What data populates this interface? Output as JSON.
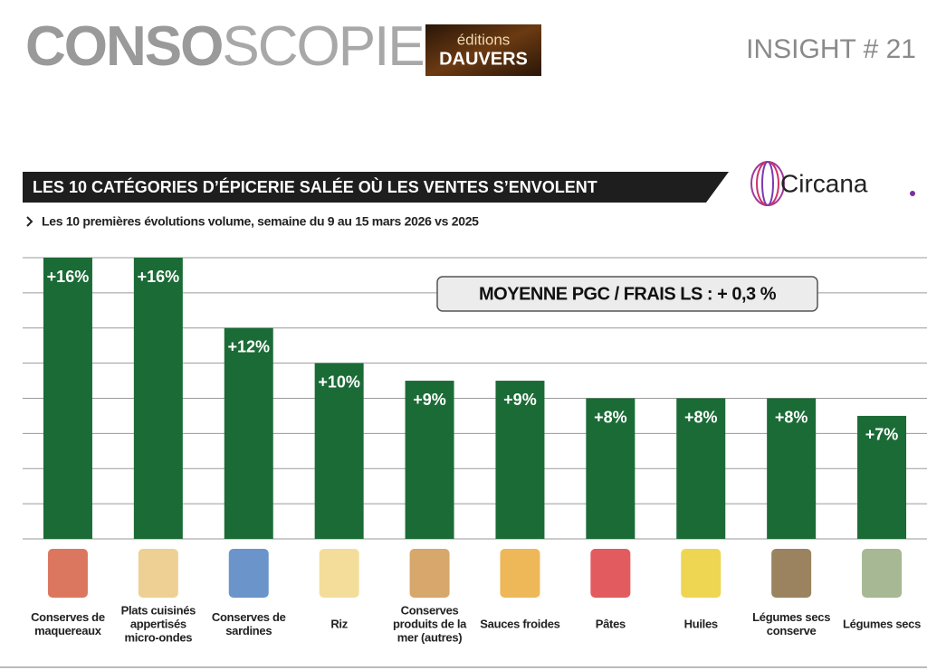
{
  "header": {
    "brand_bold": "CONSO",
    "brand_light": "SCOPIE",
    "publisher_top": "éditions",
    "publisher_bottom": "DAUVERS",
    "issue": "INSIGHT # 21",
    "partner": "Circana"
  },
  "chart_data": {
    "type": "bar",
    "title": "LES 10 CATÉGORIES D’ÉPICERIE SALÉE OÙ LES VENTES S’ENVOLENT",
    "subtitle": "Les 10 premières évolutions volume, semaine du 9 au 15 mars 2026 vs 2025",
    "annotation": "MOYENNE PGC / FRAIS LS : + 0,3 %",
    "categories": [
      "Conserves de maquereaux",
      "Plats cuisinés appertisés micro-ondes",
      "Conserves de sardines",
      "Riz",
      "Conserves produits de la mer (autres)",
      "Sauces froides",
      "Pâtes",
      "Huiles",
      "Légumes secs conserve",
      "Légumes secs"
    ],
    "values": [
      16,
      16,
      12,
      10,
      9,
      9,
      8,
      8,
      8,
      7
    ],
    "value_labels": [
      "+16%",
      "+16%",
      "+12%",
      "+10%",
      "+9%",
      "+9%",
      "+8%",
      "+8%",
      "+8%",
      "+7%"
    ],
    "color": "#1b6b36",
    "ylim": [
      0,
      16
    ],
    "yticks": [
      0,
      2,
      4,
      6,
      8,
      10,
      12,
      14,
      16
    ],
    "grid": true
  }
}
